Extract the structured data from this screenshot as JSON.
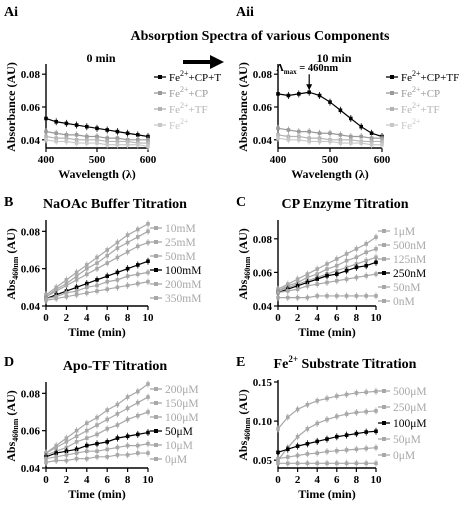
{
  "figure": {
    "title": "Absorption Spectra of various Components",
    "arrow_color": "#000000"
  },
  "chart_data": [
    {
      "panel": "Ai",
      "type": "line",
      "title": "",
      "annotation": "0 min",
      "xlabel": "Wavelength (λ)",
      "ylabel": "Absorbance (AU)",
      "xlim": [
        400,
        600
      ],
      "ylim": [
        0.035,
        0.085
      ],
      "xticks": [
        "400",
        "500",
        "600"
      ],
      "yticks": [
        "0.04",
        "0.06",
        "0.08"
      ],
      "ytick_values": [
        0.04,
        0.06,
        0.08
      ],
      "legend_position": "right",
      "x": [
        400,
        420,
        440,
        460,
        480,
        500,
        520,
        540,
        560,
        580,
        600
      ],
      "series": [
        {
          "name": "Fe2+ +CP+T",
          "label_main": "Fe",
          "label_sup": "2+",
          "label_rest": "+CP+T",
          "color": "#000000",
          "values": [
            0.053,
            0.051,
            0.05,
            0.049,
            0.048,
            0.047,
            0.046,
            0.045,
            0.044,
            0.043,
            0.042
          ]
        },
        {
          "name": "Fe2+ +CP",
          "label_main": "Fe",
          "label_sup": "2+",
          "label_rest": "+CP",
          "color": "#9a9a9a",
          "values": [
            0.045,
            0.044,
            0.043,
            0.043,
            0.042,
            0.042,
            0.041,
            0.041,
            0.04,
            0.04,
            0.04
          ]
        },
        {
          "name": "Fe2+ +TF",
          "label_main": "Fe",
          "label_sup": "2+",
          "label_rest": "+TF",
          "color": "#b4b4b4",
          "values": [
            0.042,
            0.041,
            0.041,
            0.04,
            0.04,
            0.04,
            0.039,
            0.039,
            0.039,
            0.038,
            0.038
          ]
        },
        {
          "name": "Fe2+",
          "label_main": "Fe",
          "label_sup": "2+",
          "label_rest": "",
          "color": "#c8c8c8",
          "values": [
            0.04,
            0.039,
            0.039,
            0.038,
            0.038,
            0.038,
            0.037,
            0.037,
            0.037,
            0.037,
            0.036
          ]
        }
      ]
    },
    {
      "panel": "Aii",
      "type": "line",
      "title": "",
      "annotation": "10 min",
      "peak_label": "Λmax = 460nm",
      "peak_label_main": "Λ",
      "peak_label_sub": "max",
      "peak_label_rest": " = 460nm",
      "peak_x": 460,
      "xlabel": "Wavelength (λ)",
      "ylabel": "Absorbance (AU)",
      "xlim": [
        400,
        600
      ],
      "ylim": [
        0.035,
        0.085
      ],
      "xticks": [
        "400",
        "500",
        "600"
      ],
      "yticks": [
        "0.04",
        "0.06",
        "0.08"
      ],
      "ytick_values": [
        0.04,
        0.06,
        0.08
      ],
      "legend_position": "right",
      "x": [
        400,
        420,
        440,
        460,
        480,
        500,
        520,
        540,
        560,
        580,
        600
      ],
      "series": [
        {
          "name": "Fe2+ +CP+TF",
          "label_main": "Fe",
          "label_sup": "2+",
          "label_rest": "+CP+TF",
          "color": "#000000",
          "values": [
            0.068,
            0.067,
            0.068,
            0.069,
            0.067,
            0.063,
            0.058,
            0.053,
            0.048,
            0.044,
            0.042
          ]
        },
        {
          "name": "Fe2+ +CP",
          "label_main": "Fe",
          "label_sup": "2+",
          "label_rest": "+CP",
          "color": "#9a9a9a",
          "values": [
            0.047,
            0.046,
            0.045,
            0.045,
            0.044,
            0.044,
            0.043,
            0.042,
            0.042,
            0.041,
            0.041
          ]
        },
        {
          "name": "Fe2+ +TF",
          "label_main": "Fe",
          "label_sup": "2+",
          "label_rest": "+TF",
          "color": "#b4b4b4",
          "values": [
            0.043,
            0.042,
            0.042,
            0.041,
            0.041,
            0.04,
            0.04,
            0.04,
            0.039,
            0.039,
            0.039
          ]
        },
        {
          "name": "Fe2+",
          "label_main": "Fe",
          "label_sup": "2+",
          "label_rest": "",
          "color": "#c8c8c8",
          "values": [
            0.041,
            0.04,
            0.04,
            0.039,
            0.039,
            0.039,
            0.038,
            0.038,
            0.038,
            0.037,
            0.037
          ]
        }
      ]
    },
    {
      "panel": "B",
      "type": "line",
      "title": "NaOAc Buffer Titration",
      "xlabel": "Time (min)",
      "ylabel": "Abs460nm (AU)",
      "ylabel_main": "Abs",
      "ylabel_sub": "460nm",
      "ylabel_rest": " (AU)",
      "xlim": [
        0,
        10
      ],
      "ylim": [
        0.04,
        0.085
      ],
      "xticks": [
        "0",
        "2",
        "4",
        "6",
        "8",
        "10"
      ],
      "xtick_values": [
        0,
        2,
        4,
        6,
        8,
        10
      ],
      "yticks": [
        "0.04",
        "0.06",
        "0.08"
      ],
      "ytick_values": [
        0.04,
        0.06,
        0.08
      ],
      "legend_position": "right",
      "x": [
        0,
        1,
        2,
        3,
        4,
        5,
        6,
        7,
        8,
        9,
        10
      ],
      "series": [
        {
          "name": "10mM",
          "color": "#a8a8a8",
          "values": [
            0.046,
            0.05,
            0.054,
            0.058,
            0.062,
            0.066,
            0.07,
            0.074,
            0.078,
            0.081,
            0.084
          ]
        },
        {
          "name": "25mM",
          "color": "#a8a8a8",
          "values": [
            0.045,
            0.049,
            0.052,
            0.056,
            0.06,
            0.063,
            0.067,
            0.071,
            0.074,
            0.077,
            0.08
          ]
        },
        {
          "name": "50mM",
          "color": "#a8a8a8",
          "values": [
            0.045,
            0.048,
            0.051,
            0.054,
            0.057,
            0.06,
            0.063,
            0.066,
            0.069,
            0.072,
            0.074
          ]
        },
        {
          "name": "100mM",
          "color": "#000000",
          "values": [
            0.044,
            0.046,
            0.048,
            0.05,
            0.052,
            0.054,
            0.056,
            0.058,
            0.06,
            0.062,
            0.064
          ]
        },
        {
          "name": "200mM",
          "color": "#a8a8a8",
          "values": [
            0.044,
            0.045,
            0.047,
            0.048,
            0.05,
            0.051,
            0.053,
            0.054,
            0.056,
            0.057,
            0.058
          ]
        },
        {
          "name": "350mM",
          "color": "#a8a8a8",
          "values": [
            0.043,
            0.044,
            0.045,
            0.046,
            0.047,
            0.048,
            0.049,
            0.05,
            0.051,
            0.052,
            0.053
          ]
        }
      ]
    },
    {
      "panel": "C",
      "type": "line",
      "title": "CP Enzyme Titration",
      "xlabel": "Time (min)",
      "ylabel": "Abs460nm (AU)",
      "ylabel_main": "Abs",
      "ylabel_sub": "460nm",
      "ylabel_rest": " (AU)",
      "xlim": [
        0,
        10
      ],
      "ylim": [
        0.04,
        0.09
      ],
      "xticks": [
        "0",
        "2",
        "4",
        "6",
        "8",
        "10"
      ],
      "xtick_values": [
        0,
        2,
        4,
        6,
        8,
        10
      ],
      "yticks": [
        "0.04",
        "0.06",
        "0.08"
      ],
      "ytick_values": [
        0.04,
        0.06,
        0.08
      ],
      "legend_position": "right",
      "x": [
        0,
        1,
        2,
        3,
        4,
        5,
        6,
        7,
        8,
        9,
        10
      ],
      "series": [
        {
          "name": "1μM",
          "color": "#a8a8a8",
          "values": [
            0.05,
            0.053,
            0.056,
            0.059,
            0.062,
            0.065,
            0.068,
            0.071,
            0.074,
            0.077,
            0.081
          ]
        },
        {
          "name": "500nM",
          "color": "#a8a8a8",
          "values": [
            0.049,
            0.052,
            0.054,
            0.057,
            0.059,
            0.062,
            0.064,
            0.067,
            0.069,
            0.072,
            0.074
          ]
        },
        {
          "name": "125nM",
          "color": "#a8a8a8",
          "values": [
            0.049,
            0.051,
            0.053,
            0.055,
            0.057,
            0.059,
            0.061,
            0.063,
            0.065,
            0.067,
            0.069
          ]
        },
        {
          "name": "250nM",
          "color": "#000000",
          "values": [
            0.048,
            0.05,
            0.052,
            0.054,
            0.056,
            0.058,
            0.059,
            0.061,
            0.063,
            0.064,
            0.066
          ]
        },
        {
          "name": "50nM",
          "color": "#a8a8a8",
          "values": [
            0.048,
            0.049,
            0.05,
            0.052,
            0.053,
            0.054,
            0.055,
            0.056,
            0.057,
            0.058,
            0.059
          ]
        },
        {
          "name": "0nM",
          "color": "#a8a8a8",
          "values": [
            0.045,
            0.045,
            0.045,
            0.045,
            0.046,
            0.046,
            0.046,
            0.046,
            0.046,
            0.046,
            0.046
          ]
        }
      ]
    },
    {
      "panel": "D",
      "type": "line",
      "title": "Apo-TF Titration",
      "xlabel": "Time (min)",
      "ylabel": "Abs460nm (AU)",
      "ylabel_main": "Abs",
      "ylabel_sub": "460nm",
      "ylabel_rest": " (AU)",
      "xlim": [
        0,
        10
      ],
      "ylim": [
        0.04,
        0.085
      ],
      "xticks": [
        "0",
        "2",
        "4",
        "6",
        "8",
        "10"
      ],
      "xtick_values": [
        0,
        2,
        4,
        6,
        8,
        10
      ],
      "yticks": [
        "0.04",
        "0.06",
        "0.08"
      ],
      "ytick_values": [
        0.04,
        0.06,
        0.08
      ],
      "legend_position": "right",
      "x": [
        0,
        1,
        2,
        3,
        4,
        5,
        6,
        7,
        8,
        9,
        10
      ],
      "series": [
        {
          "name": "200μM",
          "color": "#a8a8a8",
          "values": [
            0.048,
            0.052,
            0.056,
            0.06,
            0.064,
            0.067,
            0.071,
            0.074,
            0.078,
            0.081,
            0.085
          ]
        },
        {
          "name": "150μM",
          "color": "#a8a8a8",
          "values": [
            0.048,
            0.051,
            0.054,
            0.057,
            0.06,
            0.063,
            0.066,
            0.069,
            0.072,
            0.075,
            0.078
          ]
        },
        {
          "name": "100μM",
          "color": "#a8a8a8",
          "values": [
            0.047,
            0.049,
            0.051,
            0.054,
            0.056,
            0.058,
            0.061,
            0.063,
            0.066,
            0.068,
            0.07
          ]
        },
        {
          "name": "50μM",
          "color": "#000000",
          "values": [
            0.046,
            0.048,
            0.049,
            0.05,
            0.052,
            0.053,
            0.054,
            0.056,
            0.057,
            0.058,
            0.059
          ]
        },
        {
          "name": "10μM",
          "color": "#a8a8a8",
          "values": [
            0.045,
            0.046,
            0.047,
            0.048,
            0.049,
            0.049,
            0.05,
            0.051,
            0.052,
            0.052,
            0.053
          ]
        },
        {
          "name": "0μM",
          "color": "#a8a8a8",
          "values": [
            0.043,
            0.044,
            0.044,
            0.045,
            0.045,
            0.046,
            0.046,
            0.047,
            0.047,
            0.048,
            0.048
          ]
        }
      ]
    },
    {
      "panel": "E",
      "type": "line",
      "title": "Fe2+ Substrate Titration",
      "title_main": "Fe",
      "title_sup": "2+",
      "title_rest": " Substrate Titration",
      "xlabel": "Time (min)",
      "ylabel": "Abs460nm (AU)",
      "ylabel_main": "Abs",
      "ylabel_sub": "460nm",
      "ylabel_rest": " (AU)",
      "xlim": [
        0,
        10
      ],
      "ylim": [
        0.04,
        0.15
      ],
      "xticks": [
        "0",
        "2",
        "4",
        "6",
        "8",
        "10"
      ],
      "xtick_values": [
        0,
        2,
        4,
        6,
        8,
        10
      ],
      "yticks": [
        "0.05",
        "0.10",
        "0.15"
      ],
      "ytick_values": [
        0.05,
        0.1,
        0.15
      ],
      "legend_position": "right",
      "x": [
        0,
        1,
        2,
        3,
        4,
        5,
        6,
        7,
        8,
        9,
        10
      ],
      "series": [
        {
          "name": "500μM",
          "color": "#a8a8a8",
          "values": [
            0.09,
            0.105,
            0.115,
            0.121,
            0.126,
            0.129,
            0.132,
            0.134,
            0.136,
            0.137,
            0.138
          ]
        },
        {
          "name": "250μM",
          "color": "#a8a8a8",
          "values": [
            0.05,
            0.066,
            0.08,
            0.09,
            0.097,
            0.102,
            0.106,
            0.109,
            0.111,
            0.112,
            0.113
          ]
        },
        {
          "name": "100μM",
          "color": "#000000",
          "values": [
            0.06,
            0.064,
            0.068,
            0.071,
            0.074,
            0.077,
            0.08,
            0.082,
            0.084,
            0.086,
            0.087
          ]
        },
        {
          "name": "50μM",
          "color": "#a8a8a8",
          "values": [
            0.052,
            0.054,
            0.056,
            0.058,
            0.059,
            0.061,
            0.062,
            0.063,
            0.064,
            0.065,
            0.066
          ]
        },
        {
          "name": "0μM",
          "color": "#a8a8a8",
          "values": [
            0.046,
            0.046,
            0.046,
            0.046,
            0.046,
            0.046,
            0.046,
            0.046,
            0.046,
            0.046,
            0.046
          ]
        }
      ]
    }
  ]
}
